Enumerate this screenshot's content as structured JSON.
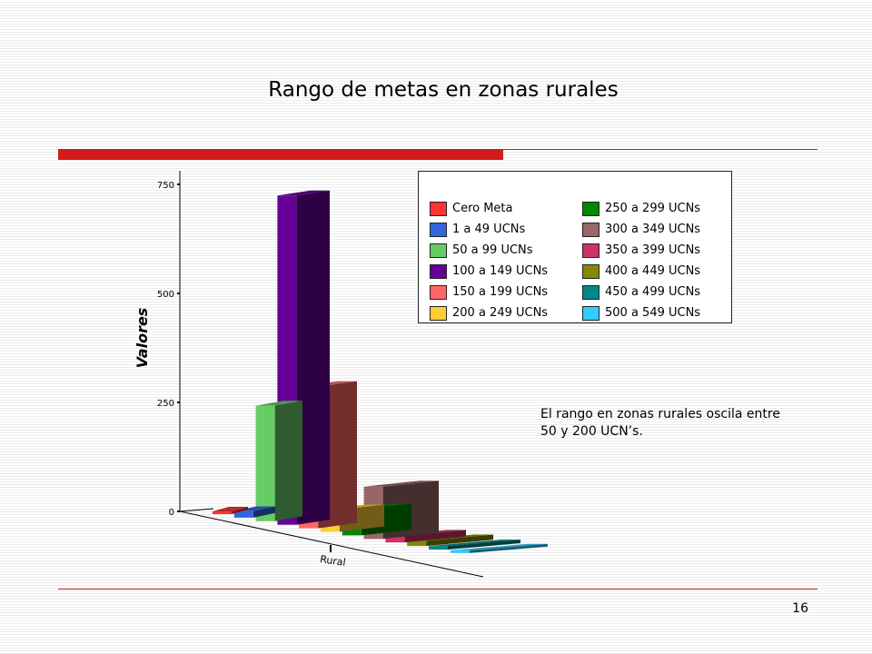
{
  "slide": {
    "title": "Rango de metas en zonas rurales",
    "note": "El rango en zonas rurales oscila entre 50 y 200 UCN’s.",
    "page_number": "16",
    "accent_color": "#d21c1c"
  },
  "chart_data": {
    "type": "bar",
    "style": "3d",
    "categories": [
      "Rural"
    ],
    "xlabel": "",
    "ylabel": "Valores",
    "ylim": [
      0,
      750
    ],
    "yticks": [
      0,
      250,
      500,
      750
    ],
    "ytick_labels": [
      "0",
      "250",
      "500",
      "750"
    ],
    "legend_position": "top-right",
    "series": [
      {
        "name": "Cero Meta",
        "values": [
          5
        ],
        "color": "#ff3333"
      },
      {
        "name": "1 a 49 UCNs",
        "values": [
          15
        ],
        "color": "#3366dd"
      },
      {
        "name": "50 a 99 UCNs",
        "values": [
          265
        ],
        "color": "#66cc66"
      },
      {
        "name": "100 a 149 UCNs",
        "values": [
          755
        ],
        "color": "#660099"
      },
      {
        "name": "150 a 199 UCNs",
        "values": [
          325
        ],
        "color": "#ff6666"
      },
      {
        "name": "200 a 249 UCNs",
        "values": [
          50
        ],
        "color": "#ffcc33"
      },
      {
        "name": "250 a 299 UCNs",
        "values": [
          60
        ],
        "color": "#008800"
      },
      {
        "name": "300 a 349 UCNs",
        "values": [
          120
        ],
        "color": "#996666"
      },
      {
        "name": "350 a 399 UCNs",
        "values": [
          15
        ],
        "color": "#cc3366"
      },
      {
        "name": "400 a 449 UCNs",
        "values": [
          12
        ],
        "color": "#888800"
      },
      {
        "name": "450 a 499 UCNs",
        "values": [
          8
        ],
        "color": "#008888"
      },
      {
        "name": "500 a 549 UCNs",
        "values": [
          5
        ],
        "color": "#33ccff"
      }
    ]
  }
}
